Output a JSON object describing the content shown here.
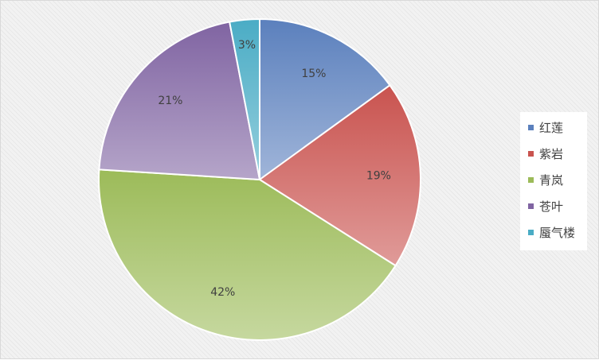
{
  "chart_data": {
    "type": "pie",
    "title": "",
    "categories": [
      "红莲",
      "紫岩",
      "青岚",
      "苍叶",
      "蜃气楼"
    ],
    "values": [
      15,
      19,
      42,
      21,
      3
    ],
    "data_labels": [
      "15%",
      "19%",
      "42%",
      "21%",
      "3%"
    ],
    "colors": [
      "#5b80bd",
      "#c9534f",
      "#9cbb59",
      "#8064a2",
      "#4aacc5"
    ],
    "legend_position": "right"
  }
}
